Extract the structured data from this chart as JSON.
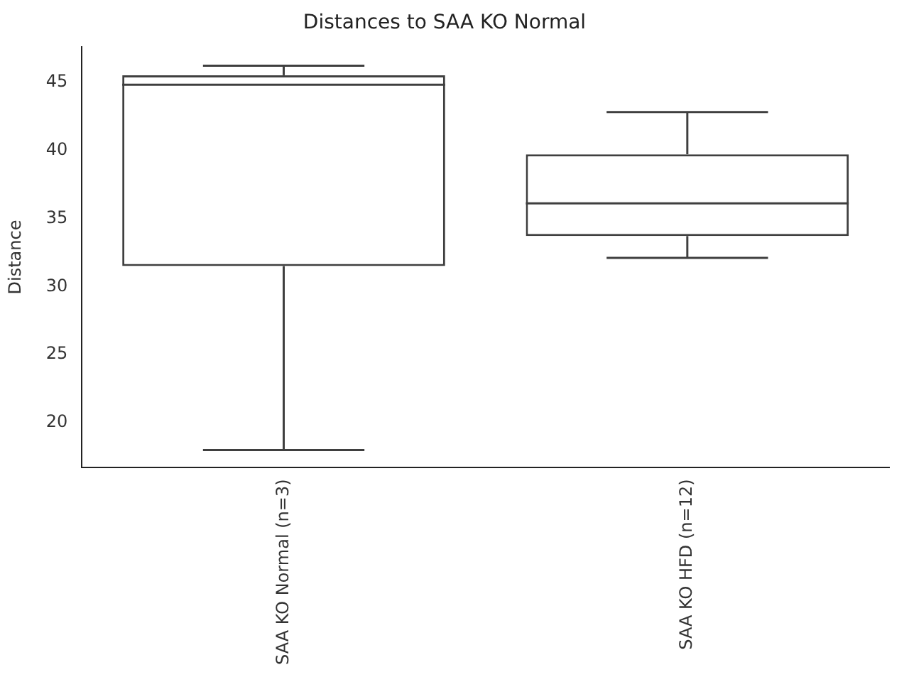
{
  "chart_data": {
    "type": "box",
    "title": "Distances to SAA KO Normal",
    "ylabel": "Distance",
    "categories": [
      "SAA KO Normal (n=3)",
      "SAA KO HFD (n=12)"
    ],
    "boxes": [
      {
        "low": 18.0,
        "q1": 31.5,
        "median": 44.8,
        "q3": 45.5,
        "high": 46.2
      },
      {
        "low": 32.1,
        "q1": 33.7,
        "median": 36.1,
        "q3": 39.7,
        "high": 42.8
      }
    ],
    "color": "#3f3f3f",
    "ylim": [
      16.7,
      47.6
    ],
    "yticks": [
      20,
      25,
      30,
      35,
      40,
      45
    ],
    "grid": false
  }
}
